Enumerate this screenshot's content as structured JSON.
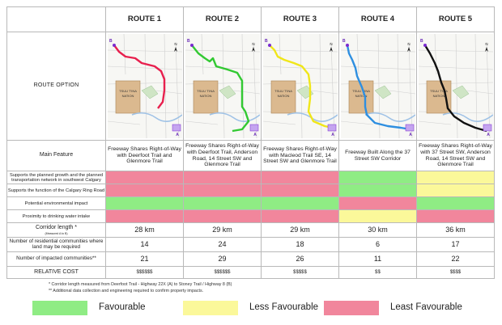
{
  "header": {
    "route_option": "ROUTE OPTION",
    "routes": [
      "ROUTE 1",
      "ROUTE 2",
      "ROUTE 3",
      "ROUTE 4",
      "ROUTE 5"
    ]
  },
  "map": {
    "tsuu_tina_line1": "TSUU T'INA",
    "tsuu_tina_line2": "NATION",
    "route_colors": [
      "#e8204e",
      "#32c932",
      "#f0e619",
      "#2f8fe0",
      "#111111"
    ],
    "marker_a": "A",
    "marker_b": "B",
    "north": "N"
  },
  "main_feature": {
    "label": "Main Feature",
    "values": [
      "Freeway Shares Right-of-Way with Deerfoot Trail and Glenmore Trail",
      "Freeway Shares Right-of-Way with Deerfoot Trail, Anderson Road, 14 Street SW and Glenmore Trail",
      "Freeway Shares Right-of-Way with Macleod Trail SE, 14 Street SW and Glenmore Trail",
      "Freeway Built Along the 37 Street SW Corridor",
      "Freeway Shares Right-of-Way with 37 Street SW, Anderson Road, 14 Street SW and Glenmore Trail"
    ]
  },
  "criteria": [
    {
      "label": "Supports the planned growth and the planned transportation network in southwest Calgary",
      "ratings": [
        "least",
        "least",
        "least",
        "favourable",
        "less"
      ]
    },
    {
      "label": "Supports the function of the Calgary Ring Road",
      "ratings": [
        "least",
        "least",
        "least",
        "favourable",
        "less"
      ]
    },
    {
      "label": "Potential environmental impact",
      "ratings": [
        "favourable",
        "favourable",
        "favourable",
        "least",
        "favourable"
      ]
    },
    {
      "label": "Proximity to drinking water intake",
      "ratings": [
        "least",
        "least",
        "least",
        "less",
        "least"
      ]
    }
  ],
  "corridor_length": {
    "label": "Corridor length *",
    "sublabel": "(Measured A to B)",
    "values": [
      "28 km",
      "29 km",
      "29 km",
      "30 km",
      "36 km"
    ]
  },
  "residential": {
    "label": "Number of residential communities where land may be required",
    "values": [
      "14",
      "24",
      "18",
      "6",
      "17"
    ]
  },
  "impacted": {
    "label": "Number of impacted communities**",
    "values": [
      "21",
      "29",
      "26",
      "11",
      "22"
    ]
  },
  "cost": {
    "label": "RELATIVE COST",
    "values": [
      "$$$$$$",
      "$$$$$$",
      "$$$$$",
      "$$",
      "$$$$"
    ]
  },
  "notes": {
    "note1": "*  Corridor length measured from Deerfoot Trail - Highway 22X (A) to Stoney Trail / Highway 8 (B)",
    "note2": "** Additional data collection and engineering required to confirm property impacts."
  },
  "legend": {
    "favourable": "Favourable",
    "less": "Less Favourable",
    "least": "Least Favourable",
    "colors": {
      "favourable": "#8fec84",
      "less": "#fbf89a",
      "least": "#f1869c"
    }
  }
}
